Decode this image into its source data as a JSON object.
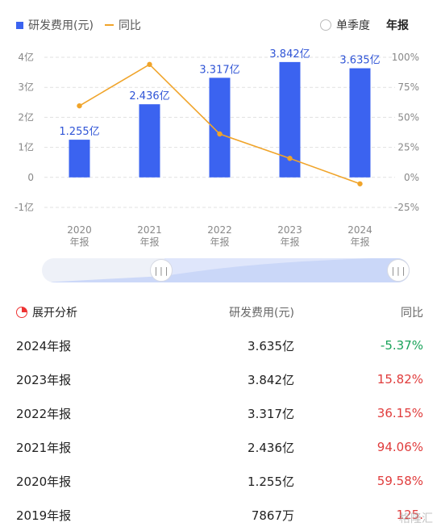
{
  "legend": {
    "bar_label": "研发费用(元)",
    "line_label": "同比"
  },
  "toggle": {
    "quarter_label": "单季度",
    "annual_label": "年报"
  },
  "chart_data": {
    "type": "bar+line",
    "categories": [
      [
        "2020",
        "年报"
      ],
      [
        "2021",
        "年报"
      ],
      [
        "2022",
        "年报"
      ],
      [
        "2023",
        "年报"
      ],
      [
        "2024",
        "年报"
      ]
    ],
    "series": [
      {
        "name": "研发费用(元)",
        "type": "bar",
        "axis": "left",
        "values": [
          1.255,
          2.436,
          3.317,
          3.842,
          3.635
        ],
        "labels": [
          "1.255亿",
          "2.436亿",
          "3.317亿",
          "3.842亿",
          "3.635亿"
        ]
      },
      {
        "name": "同比",
        "type": "line",
        "axis": "right",
        "values": [
          59.58,
          94.06,
          36.15,
          15.82,
          -5.37
        ]
      }
    ],
    "left_axis": {
      "ticks": [
        4,
        3,
        2,
        1,
        0,
        -1
      ],
      "tick_labels": [
        "4亿",
        "3亿",
        "2亿",
        "1亿",
        "0",
        "-1亿"
      ],
      "ylim": [
        -1,
        4
      ]
    },
    "right_axis": {
      "ticks": [
        100,
        75,
        50,
        25,
        0,
        -25
      ],
      "tick_labels": [
        "100%",
        "75%",
        "50%",
        "25%",
        "0%",
        "-25%"
      ],
      "ylim": [
        -25,
        100
      ]
    },
    "colors": {
      "bar": "#3b63f0",
      "line": "#f0a42a",
      "bar_label": "#2f54d6"
    },
    "grid": true
  },
  "table": {
    "title": "展开分析",
    "col_value": "研发费用(元)",
    "col_yoy": "同比",
    "rows": [
      {
        "year": "2024年报",
        "value": "3.635亿",
        "yoy": "-5.37%",
        "color": "#1aa35a"
      },
      {
        "year": "2023年报",
        "value": "3.842亿",
        "yoy": "15.82%",
        "color": "#e03c3c"
      },
      {
        "year": "2022年报",
        "value": "3.317亿",
        "yoy": "36.15%",
        "color": "#e03c3c"
      },
      {
        "year": "2021年报",
        "value": "2.436亿",
        "yoy": "94.06%",
        "color": "#e03c3c"
      },
      {
        "year": "2020年报",
        "value": "1.255亿",
        "yoy": "59.58%",
        "color": "#e03c3c"
      },
      {
        "year": "2019年报",
        "value": "7867万",
        "yoy": "125.",
        "color": "#e03c3c"
      }
    ]
  },
  "watermark": "格隆汇"
}
